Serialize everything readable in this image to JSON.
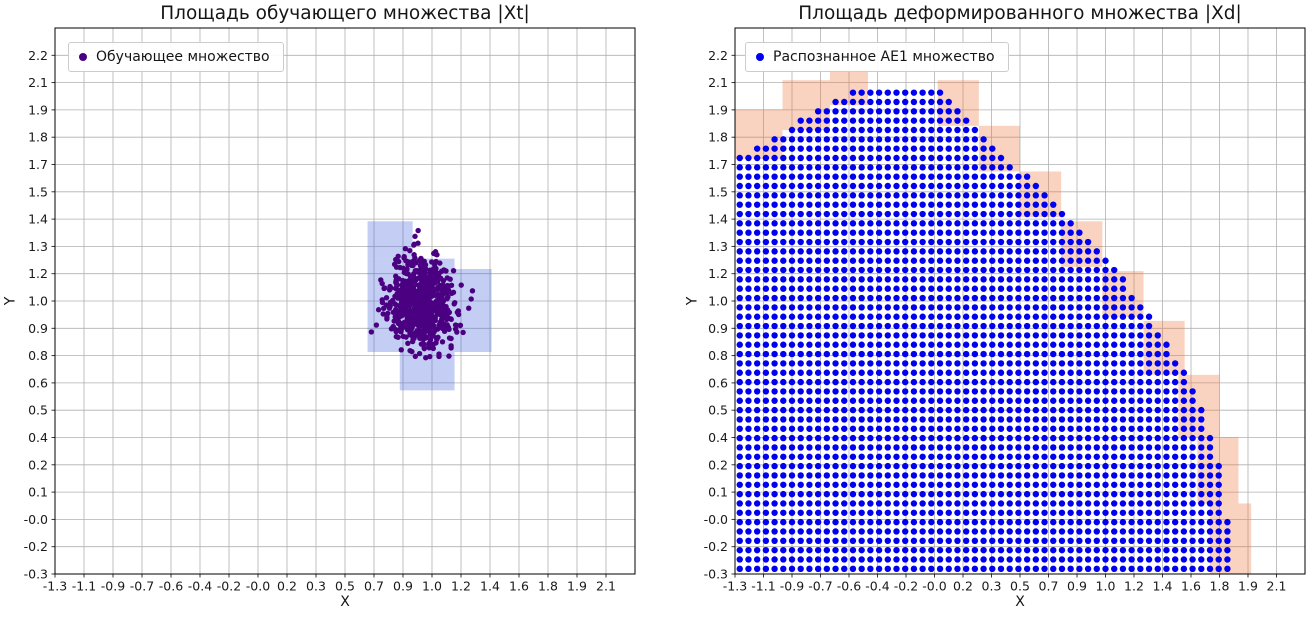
{
  "chart_data": [
    {
      "type": "scatter",
      "title": "Площадь обучающего множества |Xt|",
      "xlabel": "X",
      "ylabel": "Y",
      "grid": true,
      "legend_position": "upper left",
      "xlim": [
        -1.3,
        2.3
      ],
      "ylim": [
        -0.3,
        2.33
      ],
      "xticks": [
        "-1.3",
        "-1.1",
        "-0.9",
        "-0.7",
        "-0.6",
        "-0.4",
        "-0.2",
        "-0.0",
        "0.2",
        "0.3",
        "0.5",
        "0.7",
        "0.9",
        "1.0",
        "1.2",
        "1.4",
        "1.6",
        "1.8",
        "1.9",
        "2.1"
      ],
      "yticks": [
        "-0.3",
        "-0.2",
        "-0.0",
        "0.1",
        "0.2",
        "0.4",
        "0.5",
        "0.6",
        "0.8",
        "0.9",
        "1.0",
        "1.2",
        "1.3",
        "1.4",
        "1.5",
        "1.7",
        "1.8",
        "1.9",
        "2.1",
        "2.2"
      ],
      "legend": [
        "Обучающее множество"
      ],
      "series": [
        {
          "name": "Обучающее множество",
          "kind": "gaussian_cluster",
          "color": "#4b0082",
          "marker_radius": 2.7,
          "n": 700,
          "center": [
            0.97,
            1.0
          ],
          "std": [
            0.105,
            0.115
          ]
        }
      ],
      "cells": {
        "label": "training-area-cells",
        "color": "rgba(72,104,220,0.32)",
        "rects": [
          [
            0.64,
            0.77,
            0.54,
            0.45
          ],
          [
            0.64,
            1.22,
            0.28,
            0.18
          ],
          [
            1.18,
            0.77,
            0.23,
            0.4
          ],
          [
            0.84,
            0.585,
            0.34,
            0.185
          ]
        ]
      }
    },
    {
      "type": "scatter",
      "title": "Площадь деформированного множества |Xd|",
      "xlabel": "X",
      "ylabel": "Y",
      "grid": true,
      "legend_position": "upper left",
      "xlim": [
        -1.3,
        2.3
      ],
      "ylim": [
        -0.3,
        2.33
      ],
      "xticks": [
        "-1.3",
        "-1.1",
        "-0.9",
        "-0.7",
        "-0.6",
        "-0.4",
        "-0.2",
        "-0.0",
        "0.2",
        "0.3",
        "0.5",
        "0.7",
        "0.9",
        "1.0",
        "1.2",
        "1.4",
        "1.6",
        "1.8",
        "1.9",
        "2.1"
      ],
      "yticks": [
        "-0.3",
        "-0.2",
        "-0.0",
        "0.1",
        "0.2",
        "0.4",
        "0.5",
        "0.6",
        "0.8",
        "0.9",
        "1.0",
        "1.2",
        "1.3",
        "1.4",
        "1.5",
        "1.7",
        "1.8",
        "1.9",
        "2.1",
        "2.2"
      ],
      "legend": [
        "Распознанное AE1 множество"
      ],
      "series": [
        {
          "name": "Распознанное AE1 множество",
          "kind": "region_grid",
          "color": "#0000f0",
          "marker_radius": 3.2,
          "spacing": [
            0.055,
            0.045
          ],
          "x_range": [
            -1.27,
            1.85
          ],
          "y_min": -0.275,
          "upper_boundary": [
            [
              -1.3,
              1.7
            ],
            [
              -0.9,
              1.88
            ],
            [
              -0.5,
              2.05
            ],
            [
              -0.02,
              2.05
            ],
            [
              0.3,
              1.8
            ],
            [
              0.7,
              1.5
            ],
            [
              1.05,
              1.22
            ],
            [
              1.35,
              0.92
            ],
            [
              1.6,
              0.6
            ],
            [
              1.75,
              0.25
            ],
            [
              1.82,
              -0.05
            ],
            [
              1.85,
              -0.28
            ]
          ]
        }
      ],
      "cells": {
        "label": "deformed-area-cells",
        "color": "rgba(238,120,60,0.33)",
        "rects": [
          [
            -1.3,
            1.7,
            0.3,
            0.24
          ],
          [
            -1.0,
            1.84,
            0.3,
            0.24
          ],
          [
            -0.7,
            1.96,
            0.24,
            0.16
          ],
          [
            -0.02,
            1.86,
            0.26,
            0.22
          ],
          [
            0.24,
            1.64,
            0.26,
            0.22
          ],
          [
            0.5,
            1.42,
            0.26,
            0.22
          ],
          [
            0.76,
            1.18,
            0.26,
            0.22
          ],
          [
            1.02,
            0.94,
            0.26,
            0.22
          ],
          [
            1.28,
            0.66,
            0.26,
            0.26
          ],
          [
            1.5,
            0.36,
            0.26,
            0.3
          ],
          [
            1.62,
            0.04,
            0.26,
            0.32
          ],
          [
            1.7,
            -0.3,
            0.26,
            0.34
          ]
        ]
      }
    }
  ]
}
